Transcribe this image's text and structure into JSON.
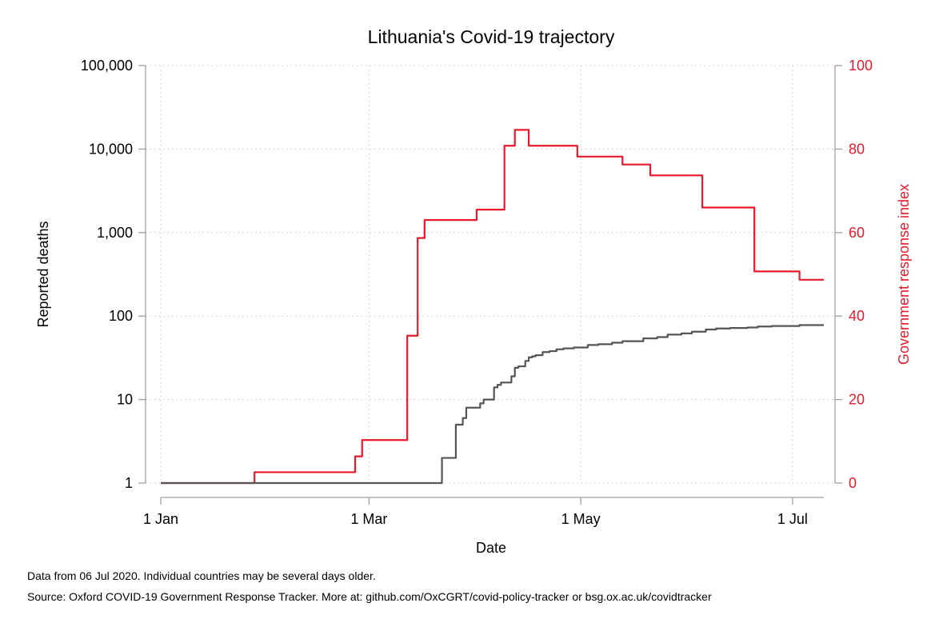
{
  "chart_data": {
    "type": "line",
    "title": "Lithuania's Covid-19 trajectory",
    "xlabel": "Date",
    "ylabel_left": "Reported deaths",
    "ylabel_right": "Government response index",
    "x_axis": {
      "min": "2020-01-01",
      "max": "2020-07-10",
      "ticks": [
        {
          "date": "2020-01-01",
          "label": "1 Jan"
        },
        {
          "date": "2020-03-01",
          "label": "1 Mar"
        },
        {
          "date": "2020-05-01",
          "label": "1 May"
        },
        {
          "date": "2020-07-01",
          "label": "1 Jul"
        }
      ]
    },
    "y_left": {
      "scale": "log",
      "range": [
        1,
        100000
      ],
      "ticks": [
        {
          "value": 1,
          "label": "1"
        },
        {
          "value": 10,
          "label": "10"
        },
        {
          "value": 100,
          "label": "100"
        },
        {
          "value": 1000,
          "label": "1,000"
        },
        {
          "value": 10000,
          "label": "10,000"
        },
        {
          "value": 100000,
          "label": "100,000"
        }
      ]
    },
    "y_right": {
      "scale": "linear",
      "range": [
        0,
        100
      ],
      "color": "#e8192c",
      "ticks": [
        {
          "value": 0,
          "label": "0"
        },
        {
          "value": 20,
          "label": "20"
        },
        {
          "value": 40,
          "label": "40"
        },
        {
          "value": 60,
          "label": "60"
        },
        {
          "value": 80,
          "label": "80"
        },
        {
          "value": 100,
          "label": "100"
        }
      ]
    },
    "grid": "dotted",
    "series": [
      {
        "axis": "right",
        "color": "#e8192c",
        "step": true,
        "points": [
          [
            "2020-01-01",
            0
          ],
          [
            "2020-01-28",
            2.6
          ],
          [
            "2020-02-26",
            6.4
          ],
          [
            "2020-02-28",
            10.3
          ],
          [
            "2020-03-12",
            35.3
          ],
          [
            "2020-03-15",
            58.7
          ],
          [
            "2020-03-17",
            63
          ],
          [
            "2020-04-01",
            65.5
          ],
          [
            "2020-04-09",
            80.8
          ],
          [
            "2020-04-12",
            84.6
          ],
          [
            "2020-04-16",
            80.8
          ],
          [
            "2020-04-30",
            78.2
          ],
          [
            "2020-05-13",
            76.3
          ],
          [
            "2020-05-21",
            73.7
          ],
          [
            "2020-06-05",
            66
          ],
          [
            "2020-06-20",
            50.7
          ],
          [
            "2020-07-03",
            48.7
          ],
          [
            "2020-07-10",
            48.7
          ]
        ]
      },
      {
        "axis": "left",
        "color": "#555555",
        "step": true,
        "points": [
          [
            "2020-01-01",
            1
          ],
          [
            "2020-03-21",
            1
          ],
          [
            "2020-03-22",
            2
          ],
          [
            "2020-03-26",
            5
          ],
          [
            "2020-03-27",
            5
          ],
          [
            "2020-03-28",
            6
          ],
          [
            "2020-03-29",
            8
          ],
          [
            "2020-04-02",
            9
          ],
          [
            "2020-04-03",
            10
          ],
          [
            "2020-04-06",
            14
          ],
          [
            "2020-04-07",
            15
          ],
          [
            "2020-04-08",
            16
          ],
          [
            "2020-04-11",
            19
          ],
          [
            "2020-04-12",
            24
          ],
          [
            "2020-04-13",
            25
          ],
          [
            "2020-04-15",
            29
          ],
          [
            "2020-04-16",
            32
          ],
          [
            "2020-04-17",
            33
          ],
          [
            "2020-04-18",
            34
          ],
          [
            "2020-04-20",
            37
          ],
          [
            "2020-04-22",
            38
          ],
          [
            "2020-04-24",
            40
          ],
          [
            "2020-04-26",
            41
          ],
          [
            "2020-04-29",
            42
          ],
          [
            "2020-05-03",
            45
          ],
          [
            "2020-05-06",
            46
          ],
          [
            "2020-05-10",
            48
          ],
          [
            "2020-05-13",
            50
          ],
          [
            "2020-05-19",
            54
          ],
          [
            "2020-05-23",
            56
          ],
          [
            "2020-05-26",
            60
          ],
          [
            "2020-05-30",
            62
          ],
          [
            "2020-06-02",
            65
          ],
          [
            "2020-06-06",
            69
          ],
          [
            "2020-06-09",
            71
          ],
          [
            "2020-06-13",
            72
          ],
          [
            "2020-06-18",
            73
          ],
          [
            "2020-06-21",
            75
          ],
          [
            "2020-06-25",
            76
          ],
          [
            "2020-07-03",
            78
          ],
          [
            "2020-07-10",
            78
          ]
        ]
      }
    ]
  },
  "notes": {
    "line1": "Data from 06 Jul 2020. Individual countries may be several days older.",
    "line2": "Source: Oxford COVID-19 Government Response Tracker. More at: github.com/OxCGRT/covid-policy-tracker or bsg.ox.ac.uk/covidtracker"
  }
}
